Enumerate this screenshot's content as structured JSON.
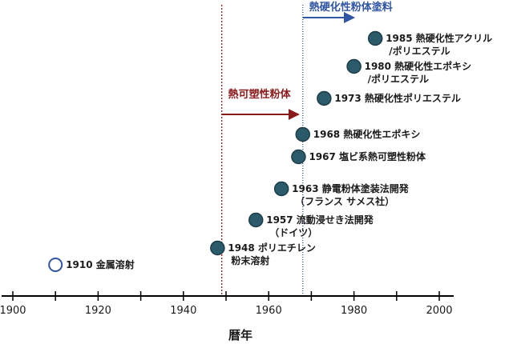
{
  "chart_data": {
    "type": "scatter",
    "title": "",
    "xlabel": "暦年",
    "ylabel": "",
    "xlim": [
      1900,
      2000
    ],
    "xticks": [
      1900,
      1920,
      1940,
      1960,
      1980,
      2000
    ],
    "grid": false,
    "events": [
      {
        "year": 1910,
        "level": 1,
        "lines": [
          "1910 金属溶射"
        ],
        "marker": "open"
      },
      {
        "year": 1948,
        "level": 2,
        "lines": [
          "1948 ポリエチレン",
          "粉末溶射"
        ],
        "marker": "filled"
      },
      {
        "year": 1957,
        "level": 3,
        "lines": [
          "1957 流動浸せき法開発",
          "（ドイツ）"
        ],
        "marker": "filled"
      },
      {
        "year": 1963,
        "level": 4,
        "lines": [
          "1963 静電粉体塗装法開発",
          "（フランス サメス社）"
        ],
        "marker": "filled"
      },
      {
        "year": 1967,
        "level": 5,
        "lines": [
          "1967 塩ビ系熱可塑性粉体"
        ],
        "marker": "filled"
      },
      {
        "year": 1968,
        "level": 6,
        "lines": [
          "1968 熱硬化性エポキシ"
        ],
        "marker": "filled"
      },
      {
        "year": 1973,
        "level": 7,
        "lines": [
          "1973 熱硬化性ポリエステル"
        ],
        "marker": "filled"
      },
      {
        "year": 1980,
        "level": 8,
        "lines": [
          "1980 熱硬化性エポキシ",
          "/ポリエステル"
        ],
        "marker": "filled"
      },
      {
        "year": 1985,
        "level": 9,
        "lines": [
          "1985 熱硬化性アクリル",
          "/ポリエステル"
        ],
        "marker": "filled"
      }
    ],
    "periods": [
      {
        "label": "熱可塑性粉体",
        "start_year": 1949,
        "end_year": 1967,
        "color": "#8b1a1a"
      },
      {
        "label": "熱硬化性粉体塗料",
        "start_year": 1968,
        "end_year": 1980,
        "color": "#2f55a4"
      }
    ]
  },
  "colors": {
    "marker_fill": "#2b5a6b",
    "marker_stroke": "#1c3c48",
    "open_marker_stroke": "#2f55a4",
    "axis": "#000000"
  }
}
